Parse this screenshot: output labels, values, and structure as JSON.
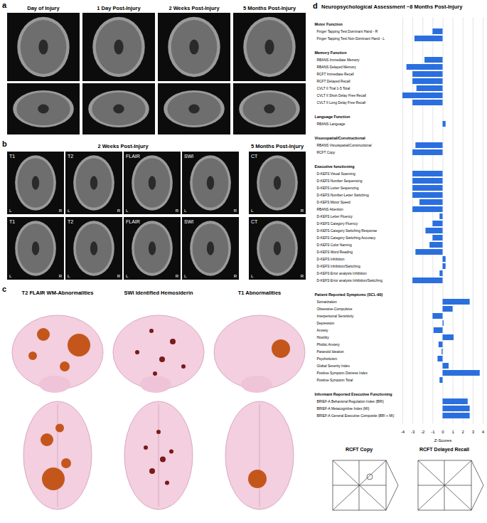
{
  "panels": [
    {
      "label": "a",
      "columns": [
        "Day of Injury",
        "1 Day Post-Injury",
        "2 Weeks Post-Injury",
        "5 Months Post-Injury"
      ]
    },
    {
      "label": "b",
      "headers": [
        "2 Weeks Post-Injury",
        "5 Months Post-Injury"
      ],
      "sequences": [
        "T1",
        "T2",
        "FLAIR",
        "SWI",
        "CT"
      ],
      "sides": [
        "L",
        "R"
      ]
    },
    {
      "label": "c",
      "titles": [
        "T2 FLAIR WM-Abnormalities",
        "SWI Identified Hemosiderin",
        "T1 Abnormalities"
      ]
    },
    {
      "label": "d",
      "drawings": [
        "RCFT Copy",
        "RCFT Delayed Recall"
      ]
    }
  ],
  "chart_data": {
    "type": "bar",
    "orientation": "horizontal",
    "title": "Neuropsychological Assessment ~8 Months Post-Injury",
    "xlabel": "Z-Scores",
    "xlim": [
      -4,
      4
    ],
    "xticks": [
      -4,
      -3,
      -2,
      -1,
      0,
      1,
      2,
      3,
      4
    ],
    "grid": true,
    "color": "#2b6fdf",
    "groups": [
      {
        "name": "Motor Function",
        "categories": [
          "Finger Tapping Test Dominant Hand - R",
          "Finger Tapping Test Non-Dominant Hand - L"
        ],
        "values": [
          -1.0,
          -2.8
        ]
      },
      {
        "name": "Memory Function",
        "categories": [
          "RBANS Immediate Memory",
          "RBANS Delayed Memory",
          "RCFT Immediate Recall",
          "RCFT Delayed Recall",
          "CVLT II Trial 1-5 Total",
          "CVLT II Short Delay Free Recall",
          "CVLT II Long Delay Free Recall"
        ],
        "values": [
          -1.8,
          -3.6,
          -3.0,
          -3.0,
          -2.6,
          -4.0,
          -3.0
        ]
      },
      {
        "name": "Language Function",
        "categories": [
          "RBANS Language"
        ],
        "values": [
          0.3
        ]
      },
      {
        "name": "Visuospatial/Constructional",
        "categories": [
          "RBANS Visuospatial/Constructional",
          "RCFT Copy"
        ],
        "values": [
          -2.7,
          -3.0
        ]
      },
      {
        "name": "Executive functioning",
        "categories": [
          "D-KEFS Visual Scanning",
          "D-KEFS Number Sequencing",
          "D-KEFS Letter Sequencing",
          "D-KEFS Number-Letter Switching",
          "D-KEFS Motor Speed",
          "RBANS Attention",
          "D-KEFS Letter Fluency",
          "D-KEFS Category Fluency",
          "D-KEFS Category Switching Response",
          "D-KEFS Category Switching Accuracy",
          "D-KEFS Color Naming",
          "D-KEFS Word Reading",
          "D-KEFS Inhibition",
          "D-KEFS Inhibition/Switching",
          "D-KEFS Error analysis Inhibition",
          "D-KEFS Error analysis Inhibition/Switching"
        ],
        "values": [
          -3.0,
          -3.0,
          -3.0,
          -3.0,
          -2.3,
          -3.0,
          -0.3,
          -1.0,
          -1.7,
          -1.0,
          -1.3,
          -2.7,
          0.3,
          0.3,
          -0.3,
          -3.0
        ]
      },
      {
        "name": "Patient Reported Symptoms (SCL-90)",
        "categories": [
          "Somatization",
          "Obsessive-Compulsive",
          "Interpersonal Sensitivity",
          "Depression",
          "Anxiety",
          "Hostility",
          "Phobic Anxiety",
          "Paranoid Ideation",
          "Psychoticism",
          "Global Severity Index",
          "Positive Symptom Distress Index",
          "Positive Symptom Total"
        ],
        "values": [
          2.7,
          1.0,
          -1.0,
          0.1,
          -0.9,
          1.1,
          -0.4,
          -0.1,
          -0.5,
          0.6,
          3.7,
          -0.3
        ]
      },
      {
        "name": "Informant Reported Executive Functioning",
        "categories": [
          "BRIEF-A Behavioral Regulation Index (BRI)",
          "BRIEF-A Metacognitive Index (MI)",
          "BRIEF-A General Executive Composite (BRI + MI)"
        ],
        "values": [
          2.5,
          2.7,
          2.7
        ]
      }
    ]
  }
}
